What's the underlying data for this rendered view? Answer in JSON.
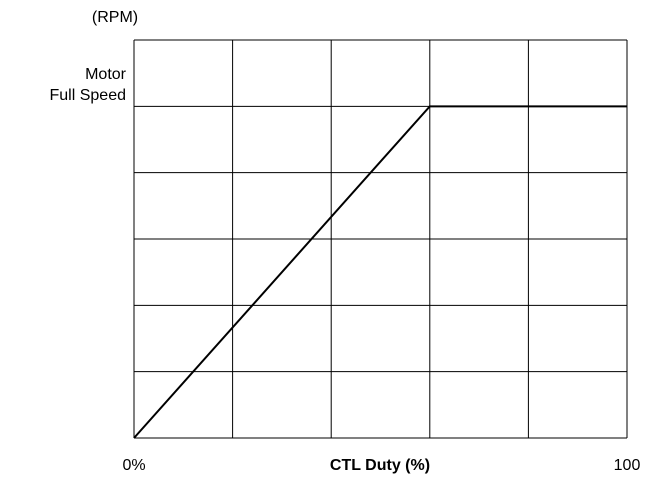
{
  "chart_data": {
    "type": "line",
    "ylabel": "(RPM)",
    "xlabel": "CTL Duty (%)",
    "x": [
      0,
      60,
      100
    ],
    "values": [
      0,
      1,
      1
    ],
    "color": "#000000",
    "xlim": [
      0,
      100
    ],
    "ylim": [
      0,
      1.2
    ],
    "xticks": [
      {
        "value": 0,
        "label": "0%"
      },
      100
    ],
    "yticks": [
      {
        "value": 1,
        "label": "Motor\nFull Speed"
      }
    ],
    "xgrid": [
      0,
      20,
      40,
      60,
      80,
      100
    ],
    "ygrid": [
      0,
      0.2,
      0.4,
      0.6,
      0.8,
      1,
      1.2
    ],
    "grid": true
  }
}
